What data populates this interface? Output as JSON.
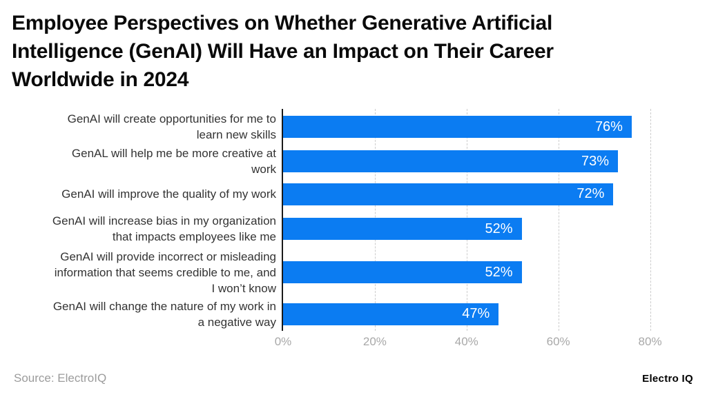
{
  "title_lines": [
    "Employee Perspectives on Whether Generative Artificial",
    "Intelligence (GenAI) Will Have an Impact on Their Career",
    "Worldwide in 2024"
  ],
  "chart_data": {
    "type": "bar",
    "orientation": "horizontal",
    "title": "Employee Perspectives on Whether Generative Artificial Intelligence (GenAI) Will Have an Impact on Their Career Worldwide in 2024",
    "categories": [
      [
        "GenAI will create opportunities for me to",
        "learn new skills"
      ],
      [
        "GenAL will help me be more creative at",
        "work"
      ],
      [
        "GenAI will improve the quality of my work"
      ],
      [
        "GenAI will increase bias in my organization",
        "that impacts employees like me"
      ],
      [
        "GenAI will provide incorrect or misleading",
        "information that seems credible to me, and",
        "I won’t know"
      ],
      [
        "GenAI will change the nature of my work in",
        "a negative way"
      ]
    ],
    "values": [
      76,
      73,
      72,
      52,
      52,
      47
    ],
    "value_labels": [
      "76%",
      "73%",
      "72%",
      "52%",
      "52%",
      "47%"
    ],
    "unit": "%",
    "x_tick_values": [
      0,
      20,
      40,
      60,
      80
    ],
    "x_tick_labels": [
      "0%",
      "20%",
      "40%",
      "60%",
      "80%"
    ],
    "xlim": [
      0,
      90
    ],
    "grid": "vertical-dashed",
    "legend": "none",
    "colors": {
      "bar": "#0b7cf2",
      "value_label": "#ffffff",
      "axis_line": "#1a1a1a",
      "gridline": "#cccccc",
      "tick_label": "#a8a8a8",
      "category_label": "#333333",
      "title": "#0a0a0a",
      "background": "#ffffff"
    }
  },
  "footer": {
    "source": "Source: ElectroIQ",
    "brand": "Electro IQ"
  }
}
